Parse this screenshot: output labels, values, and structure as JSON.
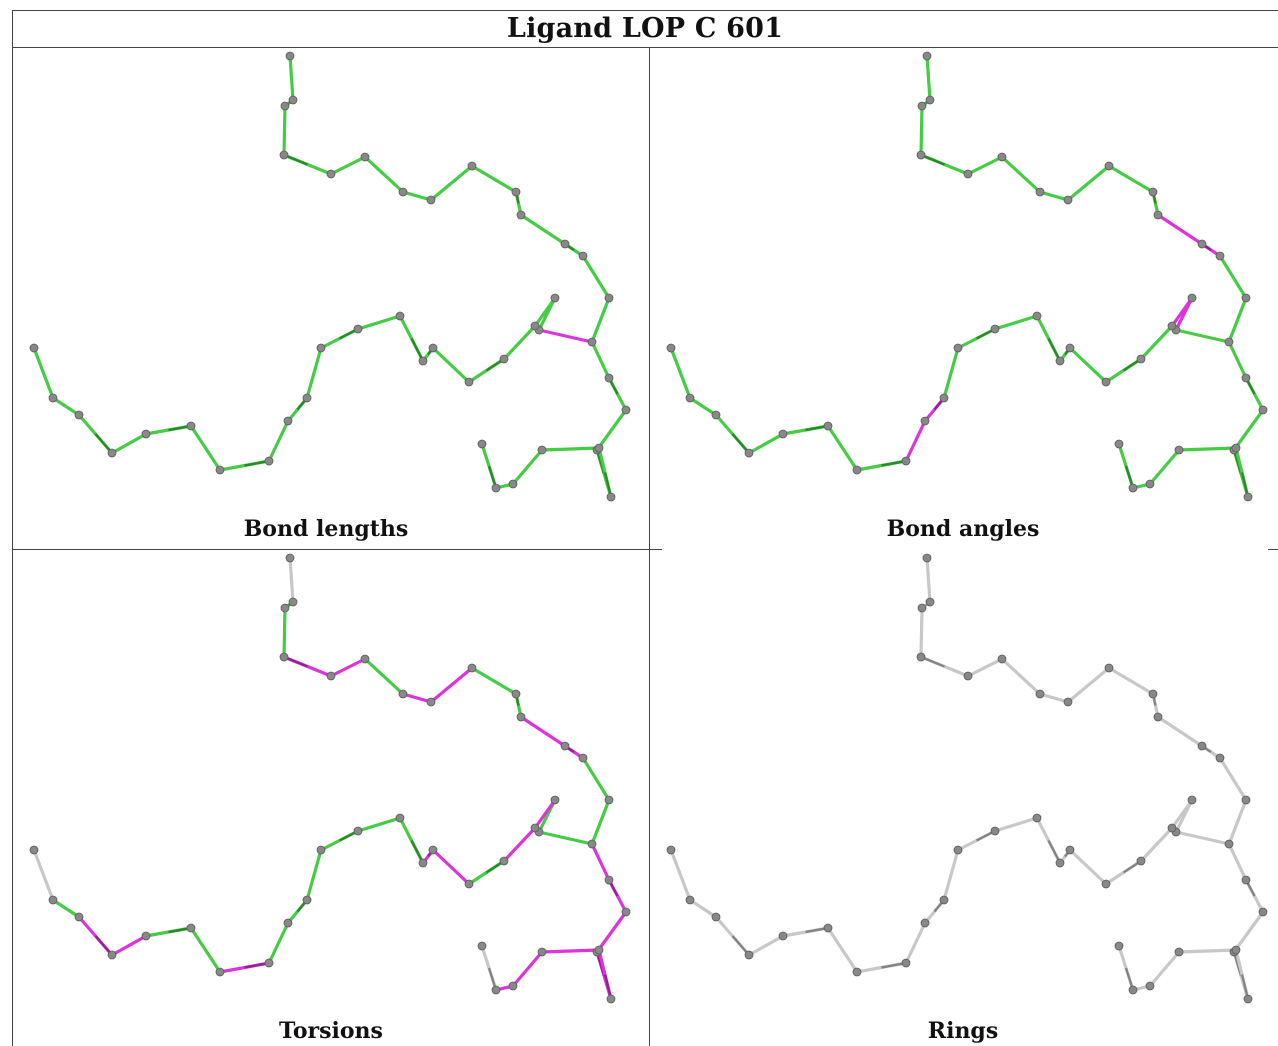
{
  "title": "Ligand LOP C 601",
  "panels": [
    {
      "caption": "Bond lengths",
      "mode": "lengths"
    },
    {
      "caption": "Bond angles",
      "mode": "angles"
    },
    {
      "caption": "Torsions",
      "mode": "torsions"
    },
    {
      "caption": "Rings",
      "mode": "rings"
    }
  ],
  "colors": {
    "green": "#44cc44",
    "magenta": "#dd33dd",
    "gray": "#c8c8c8",
    "atom": "#888888",
    "border": "#444444"
  }
}
